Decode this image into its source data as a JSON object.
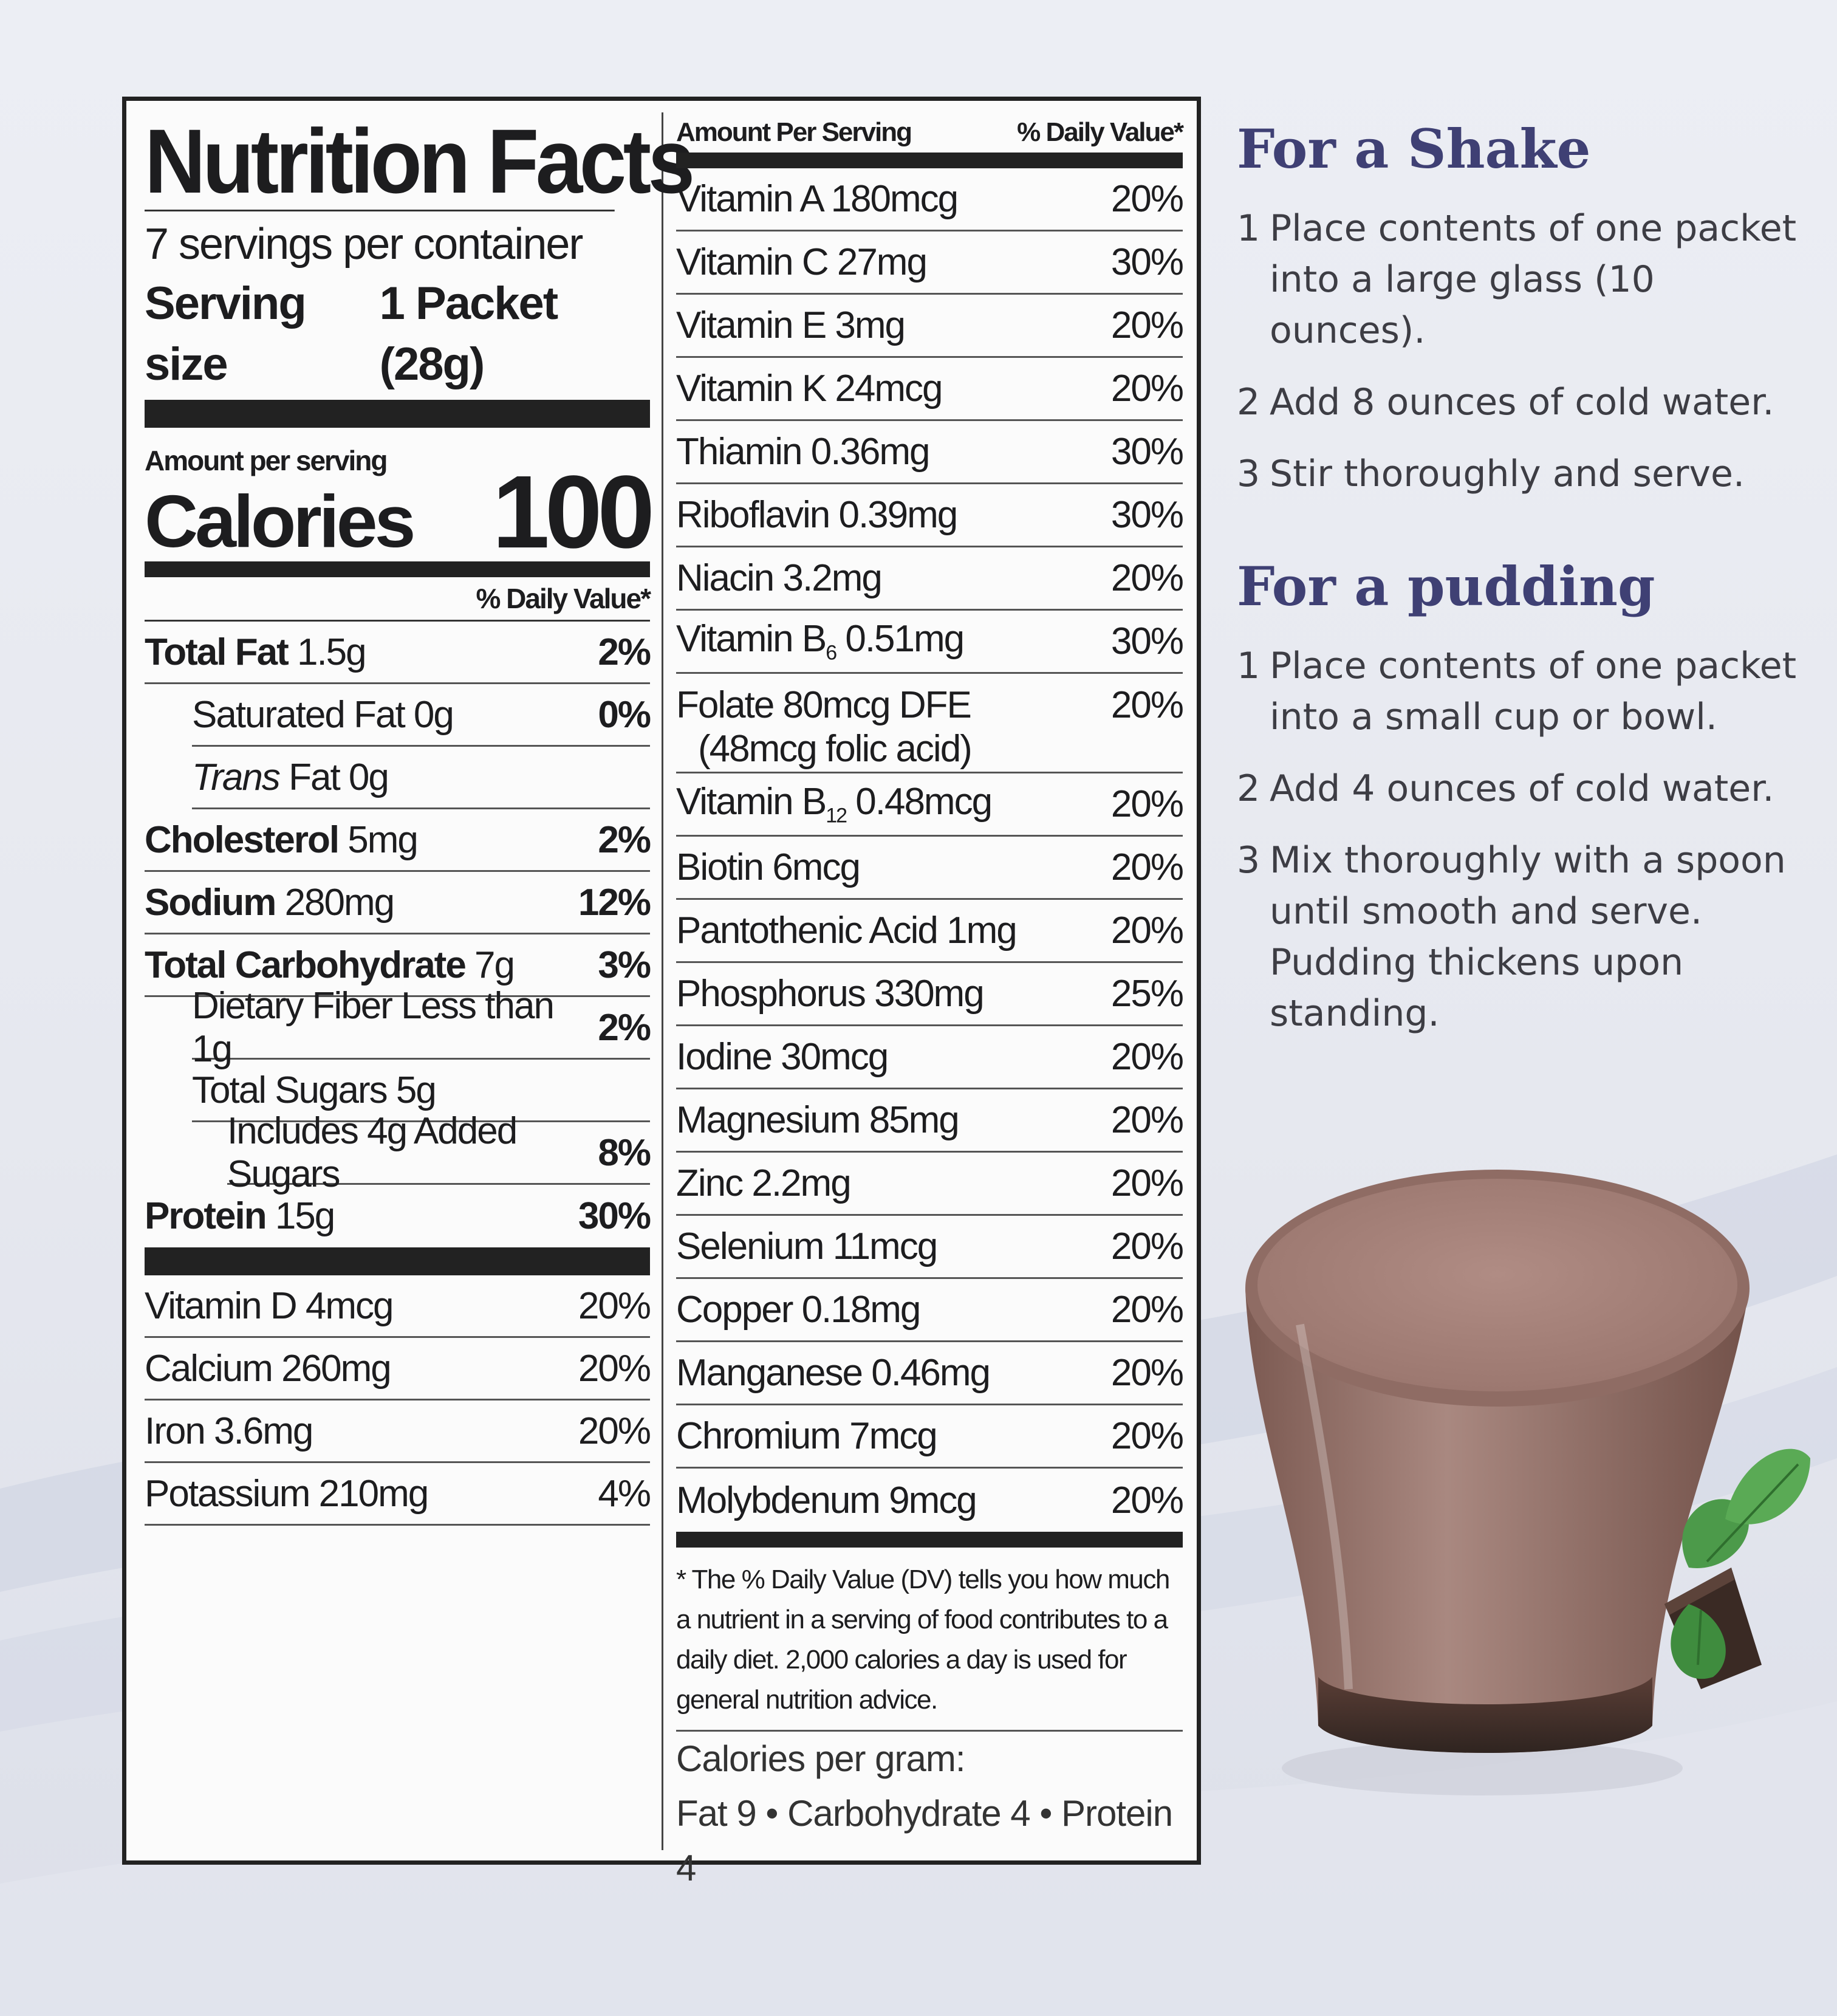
{
  "label": {
    "title": "Nutrition Facts",
    "servings_per_container": "7 servings per container",
    "serving_size_label": "Serving size",
    "serving_size_value": "1 Packet (28g)",
    "amount_per_serving": "Amount per serving",
    "calories_label": "Calories",
    "calories_value": "100",
    "dv_header": "% Daily Value*",
    "nutrients": [
      {
        "name": "Total Fat",
        "amount": "1.5g",
        "dv": "2%"
      },
      {
        "name": "Saturated Fat",
        "amount": "0g",
        "dv": "0%"
      },
      {
        "name": "Trans",
        "amount": "Fat 0g",
        "dv": ""
      },
      {
        "name": "Cholesterol",
        "amount": "5mg",
        "dv": "2%"
      },
      {
        "name": "Sodium",
        "amount": "280mg",
        "dv": "12%"
      },
      {
        "name": "Total Carbohydrate",
        "amount": "7g",
        "dv": "3%"
      },
      {
        "name": "Dietary Fiber Less than 1g",
        "amount": "",
        "dv": "2%"
      },
      {
        "name": "Total Sugars 5g",
        "amount": "",
        "dv": ""
      },
      {
        "name": "Includes 4g Added Sugars",
        "amount": "",
        "dv": "8%"
      },
      {
        "name": "Protein",
        "amount": "15g",
        "dv": "30%"
      }
    ],
    "minerals_left": [
      {
        "name": "Vitamin D 4mcg",
        "dv": "20%"
      },
      {
        "name": "Calcium 260mg",
        "dv": "20%"
      },
      {
        "name": "Iron 3.6mg",
        "dv": "20%"
      },
      {
        "name": "Potassium 210mg",
        "dv": "4%"
      }
    ],
    "right_header_amount": "Amount Per Serving",
    "right_header_dv": "% Daily Value*",
    "vitamins": [
      {
        "name": "Vitamin A 180mcg",
        "dv": "20%"
      },
      {
        "name": "Vitamin C 27mg",
        "dv": "30%"
      },
      {
        "name": "Vitamin E 3mg",
        "dv": "20%"
      },
      {
        "name": "Vitamin K 24mcg",
        "dv": "20%"
      },
      {
        "name": "Thiamin 0.36mg",
        "dv": "30%"
      },
      {
        "name": "Riboflavin 0.39mg",
        "dv": "30%"
      },
      {
        "name": "Niacin 3.2mg",
        "dv": "20%"
      }
    ],
    "vitamin_b6": {
      "prefix": "Vitamin B",
      "sub": "6",
      "amount": " 0.51mg",
      "dv": "30%"
    },
    "folate": {
      "line1": "Folate 80mcg DFE",
      "line2": "(48mcg folic acid)",
      "dv": "20%"
    },
    "vitamin_b12": {
      "prefix": "Vitamin B",
      "sub": "12",
      "amount": " 0.48mcg",
      "dv": "20%"
    },
    "minerals_right": [
      {
        "name": "Biotin 6mcg",
        "dv": "20%"
      },
      {
        "name": "Pantothenic Acid 1mg",
        "dv": "20%"
      },
      {
        "name": "Phosphorus 330mg",
        "dv": "25%"
      },
      {
        "name": "Iodine 30mcg",
        "dv": "20%"
      },
      {
        "name": "Magnesium 85mg",
        "dv": "20%"
      },
      {
        "name": "Zinc 2.2mg",
        "dv": "20%"
      },
      {
        "name": "Selenium 11mcg",
        "dv": "20%"
      },
      {
        "name": "Copper 0.18mg",
        "dv": "20%"
      },
      {
        "name": "Manganese 0.46mg",
        "dv": "20%"
      },
      {
        "name": "Chromium 7mcg",
        "dv": "20%"
      },
      {
        "name": "Molybdenum 9mcg",
        "dv": "20%"
      }
    ],
    "footnote": "* The % Daily Value (DV) tells you how much a nutrient in a serving of food contributes to a daily diet. 2,000 calories a day is used for general nutrition advice.",
    "calories_per_gram_label": "Calories per gram:",
    "calories_per_gram_values": "Fat 9 • Carbohydrate 4 • Protein 4"
  },
  "shake": {
    "title": "For a Shake",
    "steps": [
      {
        "num": "1",
        "text": "Place contents of one packet into a large glass (10 ounces)."
      },
      {
        "num": "2",
        "text": "Add 8 ounces of cold water."
      },
      {
        "num": "3",
        "text": "Stir thoroughly and serve."
      }
    ]
  },
  "pudding": {
    "title": "For a pudding",
    "steps": [
      {
        "num": "1",
        "text": "Place contents of one packet into a small cup or bowl."
      },
      {
        "num": "2",
        "text": "Add 4 ounces of cold water."
      },
      {
        "num": "3",
        "text": "Mix thoroughly with a spoon until smooth and serve. Pudding thickens upon standing."
      }
    ]
  },
  "colors": {
    "heading": "#3f4074",
    "label_ink": "#1d1d1f",
    "shake_drink": "#a5827a"
  },
  "photo": {
    "icon": "chocolate-shake-glass-with-mint"
  }
}
